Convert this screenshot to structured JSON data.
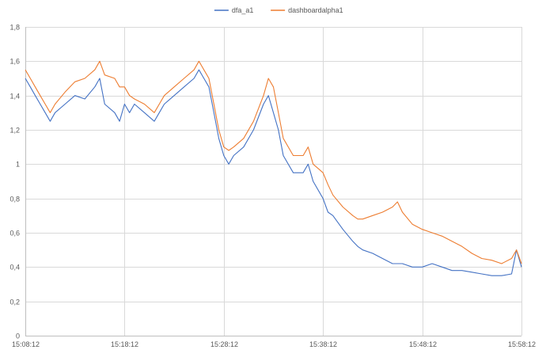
{
  "chart_data": {
    "type": "line",
    "title": "",
    "xlabel": "",
    "ylabel": "",
    "legend_position": "top",
    "grid": "major horizontal and vertical",
    "ylim": [
      0,
      1.8
    ],
    "y_ticks": [
      "0",
      "0,2",
      "0,4",
      "0,6",
      "0,8",
      "1",
      "1,2",
      "1,4",
      "1,6",
      "1,8"
    ],
    "x_tick_labels": [
      "15:08:12",
      "15:18:12",
      "15:28:12",
      "15:38:12",
      "15:48:12",
      "15:58:12"
    ],
    "x_range_minutes": [
      0,
      50
    ],
    "x_unit": "minutes after 15:08:12",
    "series": [
      {
        "name": "dfa_a1",
        "color": "#4472c4",
        "x": [
          0,
          0.5,
          1,
          1.5,
          2,
          2.5,
          3,
          4,
          5,
          6,
          7,
          7.5,
          8,
          9,
          9.5,
          10,
          10.5,
          11,
          12,
          13,
          13.5,
          14,
          15,
          16,
          17,
          17.5,
          18,
          18.5,
          19,
          19.5,
          20,
          20.5,
          21,
          22,
          23,
          24,
          24.5,
          25,
          25.5,
          26,
          27,
          28,
          28.5,
          29,
          30,
          30.5,
          31,
          32,
          33,
          33.5,
          34,
          35,
          36,
          37,
          37.5,
          38,
          39,
          40,
          41,
          42,
          43,
          44,
          45,
          46,
          47,
          48,
          49,
          49.5,
          50
        ],
        "values": [
          1.5,
          1.45,
          1.4,
          1.35,
          1.3,
          1.25,
          1.3,
          1.35,
          1.4,
          1.38,
          1.45,
          1.5,
          1.35,
          1.3,
          1.25,
          1.35,
          1.3,
          1.35,
          1.3,
          1.25,
          1.3,
          1.35,
          1.4,
          1.45,
          1.5,
          1.55,
          1.5,
          1.45,
          1.3,
          1.15,
          1.05,
          1.0,
          1.05,
          1.1,
          1.2,
          1.35,
          1.4,
          1.3,
          1.2,
          1.05,
          0.95,
          0.95,
          1.0,
          0.9,
          0.8,
          0.72,
          0.7,
          0.62,
          0.55,
          0.52,
          0.5,
          0.48,
          0.45,
          0.42,
          0.42,
          0.42,
          0.4,
          0.4,
          0.42,
          0.4,
          0.38,
          0.38,
          0.37,
          0.36,
          0.35,
          0.35,
          0.36,
          0.5,
          0.4
        ]
      },
      {
        "name": "dashboardalpha1",
        "color": "#ed7d31",
        "x": [
          0,
          0.5,
          1,
          1.5,
          2,
          2.5,
          3,
          4,
          5,
          6,
          7,
          7.5,
          8,
          9,
          9.5,
          10,
          10.5,
          11,
          12,
          13,
          13.5,
          14,
          15,
          16,
          17,
          17.5,
          18,
          18.5,
          19,
          19.5,
          20,
          20.5,
          21,
          22,
          23,
          24,
          24.5,
          25,
          25.5,
          26,
          27,
          28,
          28.5,
          29,
          30,
          30.5,
          31,
          32,
          33,
          33.5,
          34,
          35,
          36,
          37,
          37.5,
          38,
          39,
          40,
          41,
          42,
          43,
          44,
          45,
          46,
          47,
          48,
          49,
          49.5,
          50
        ],
        "values": [
          1.55,
          1.5,
          1.45,
          1.4,
          1.35,
          1.3,
          1.35,
          1.42,
          1.48,
          1.5,
          1.55,
          1.6,
          1.52,
          1.5,
          1.45,
          1.45,
          1.4,
          1.38,
          1.35,
          1.3,
          1.35,
          1.4,
          1.45,
          1.5,
          1.55,
          1.6,
          1.55,
          1.5,
          1.35,
          1.2,
          1.1,
          1.08,
          1.1,
          1.15,
          1.25,
          1.4,
          1.5,
          1.45,
          1.3,
          1.15,
          1.05,
          1.05,
          1.1,
          1.0,
          0.95,
          0.88,
          0.82,
          0.75,
          0.7,
          0.68,
          0.68,
          0.7,
          0.72,
          0.75,
          0.78,
          0.72,
          0.65,
          0.62,
          0.6,
          0.58,
          0.55,
          0.52,
          0.48,
          0.45,
          0.44,
          0.42,
          0.45,
          0.5,
          0.42
        ]
      }
    ]
  }
}
